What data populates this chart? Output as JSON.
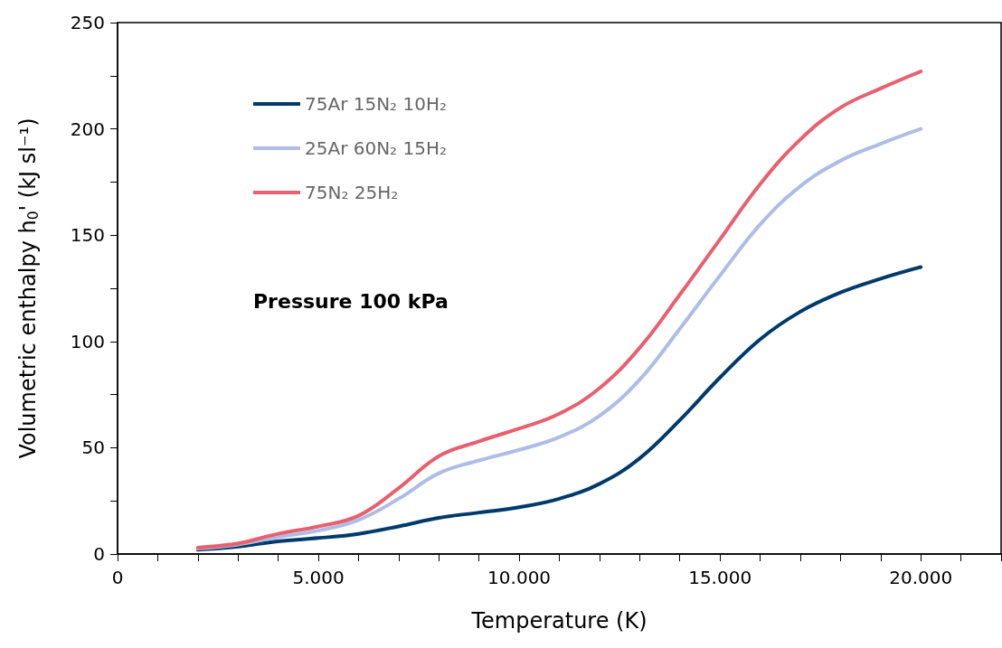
{
  "chart_data": {
    "type": "line",
    "xlabel": "Temperature (K)",
    "ylabel": "Volumetric enthalpy h$_{0}$' (kJ sl⁻¹)",
    "annotations": [
      "Pressure 100 kPa"
    ],
    "x": [
      2000,
      3000,
      4000,
      5000,
      6000,
      7000,
      8000,
      9000,
      10000,
      11000,
      12000,
      13000,
      14000,
      15000,
      16000,
      17000,
      18000,
      19000,
      20000
    ],
    "series": [
      {
        "name": "75Ar 15N₂ 10H₂",
        "color": "#003a6b",
        "values": [
          2,
          3.5,
          6,
          7.5,
          9.5,
          13,
          17,
          19.5,
          22,
          26,
          33,
          45,
          63,
          83,
          101,
          114,
          123,
          129.5,
          135
        ]
      },
      {
        "name": "25Ar 60N₂ 15H₂",
        "color": "#adbde6",
        "values": [
          2.5,
          4.5,
          8,
          11,
          16,
          26,
          38,
          44,
          49,
          55,
          65,
          82,
          106,
          131,
          155,
          173,
          185,
          193,
          200
        ]
      },
      {
        "name": "75N₂ 25H₂",
        "color": "#e8606f",
        "values": [
          3,
          5,
          9.5,
          13,
          18,
          31,
          46,
          53,
          59,
          66,
          78,
          97,
          122,
          148,
          174,
          195,
          210,
          219,
          227
        ]
      }
    ],
    "xlim": [
      0,
      22000
    ],
    "xticks": [
      0,
      {
        "value": 1000,
        "label": null
      },
      {
        "value": 2000,
        "label": null
      },
      {
        "value": 3000,
        "label": null
      },
      {
        "value": 4000,
        "label": null
      },
      {
        "value": 5000,
        "label": "5.000"
      },
      {
        "value": 6000,
        "label": null
      },
      {
        "value": 7000,
        "label": null
      },
      {
        "value": 8000,
        "label": null
      },
      {
        "value": 9000,
        "label": null
      },
      {
        "value": 10000,
        "label": "10.000"
      },
      {
        "value": 11000,
        "label": null
      },
      {
        "value": 12000,
        "label": null
      },
      {
        "value": 13000,
        "label": null
      },
      {
        "value": 14000,
        "label": null
      },
      {
        "value": 15000,
        "label": "15.000"
      },
      {
        "value": 16000,
        "label": null
      },
      {
        "value": 17000,
        "label": null
      },
      {
        "value": 18000,
        "label": null
      },
      {
        "value": 19000,
        "label": null
      },
      {
        "value": 20000,
        "label": "20.000"
      },
      {
        "value": 21000,
        "label": null
      },
      {
        "value": 22000,
        "label": null
      }
    ],
    "ylim": [
      0,
      250
    ],
    "yticks": [
      0,
      {
        "value": 25,
        "label": null
      },
      50,
      {
        "value": 75,
        "label": null
      },
      100,
      {
        "value": 125,
        "label": null
      },
      150,
      {
        "value": 175,
        "label": null
      },
      200,
      {
        "value": 225,
        "label": null
      },
      250
    ],
    "grid": false,
    "legend": "top left",
    "marker": "none",
    "line_style": "solid"
  }
}
